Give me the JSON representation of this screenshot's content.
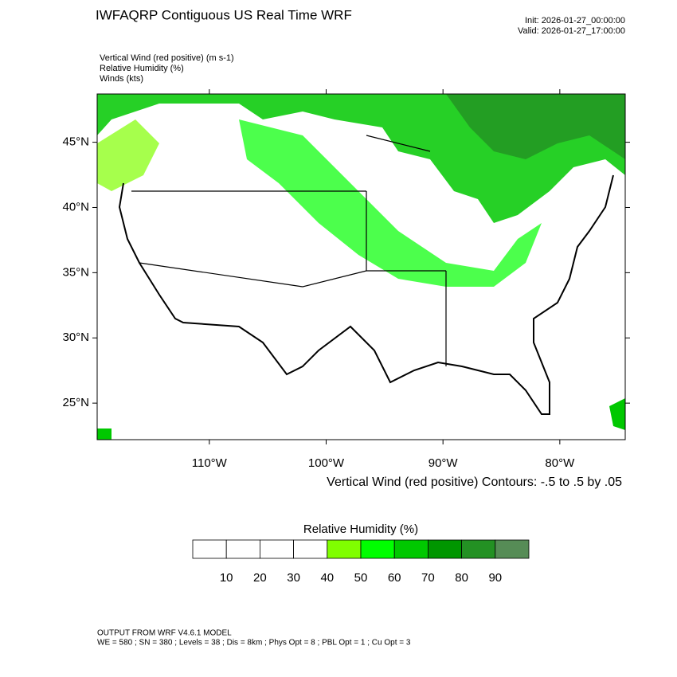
{
  "header": {
    "title": "IWFAQRP Contiguous US Real Time WRF",
    "init": "Init: 2026-01-27_00:00:00",
    "valid": "Valid: 2026-01-27_17:00:00"
  },
  "fields": [
    "Vertical Wind (red positive)   (m s-1)",
    "Relative Humidity   (%)",
    "Winds   (kts)"
  ],
  "map": {
    "xlim": [
      -119.6,
      -74.4
    ],
    "ylim": [
      22.2,
      48.7
    ],
    "yticks": [
      {
        "value": 45,
        "label": "45°N"
      },
      {
        "value": 40,
        "label": "40°N"
      },
      {
        "value": 35,
        "label": "35°N"
      },
      {
        "value": 30,
        "label": "30°N"
      },
      {
        "value": 25,
        "label": "25°N"
      }
    ],
    "xticks": [
      {
        "value": -110,
        "label": "110°W"
      },
      {
        "value": -100,
        "label": "100°W"
      },
      {
        "value": -90,
        "label": "90°W"
      },
      {
        "value": -80,
        "label": "80°W"
      }
    ],
    "contour_note": "Vertical Wind (red positive) Contours: -.5 to .5 by .05"
  },
  "colorbar": {
    "title": "Relative Humidity  (%)",
    "ticks": [
      10,
      20,
      30,
      40,
      50,
      60,
      70,
      80,
      90
    ],
    "colors": [
      "#ffffff",
      "#ffffff",
      "#ffffff",
      "#ffffff",
      "#80ff00",
      "#00ff00",
      "#00c800",
      "#009600",
      "#239123",
      "#568c56"
    ]
  },
  "footer": [
    "OUTPUT FROM WRF V4.6.1 MODEL",
    "WE = 580 ; SN = 380 ; Levels = 38 ; Dis = 8km ; Phys Opt = 8 ; PBL Opt = 1 ; Cu Opt = 3"
  ]
}
